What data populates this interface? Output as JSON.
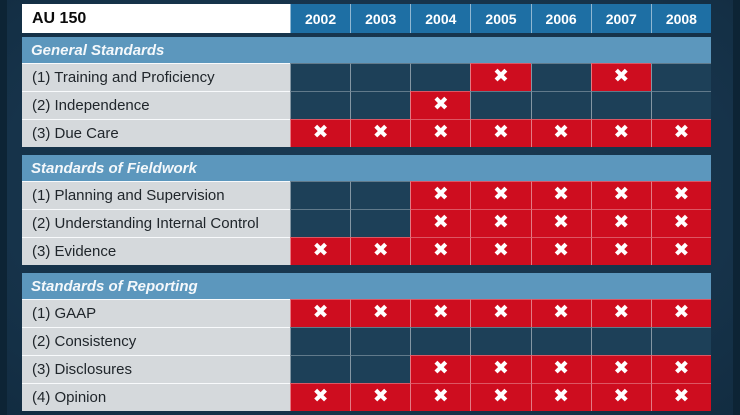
{
  "chart_data": {
    "type": "table",
    "title": "AU 150",
    "columns": [
      "2002",
      "2003",
      "2004",
      "2005",
      "2006",
      "2007",
      "2008"
    ],
    "mark_glyph": "✖",
    "sections": [
      {
        "title": "General Standards",
        "rows": [
          {
            "label": "(1) Training and Proficiency",
            "marks": [
              0,
              0,
              0,
              1,
              0,
              1,
              0
            ]
          },
          {
            "label": "(2) Independence",
            "marks": [
              0,
              0,
              1,
              0,
              0,
              0,
              0
            ]
          },
          {
            "label": "(3) Due Care",
            "marks": [
              1,
              1,
              1,
              1,
              1,
              1,
              1
            ]
          }
        ]
      },
      {
        "title": "Standards of Fieldwork",
        "rows": [
          {
            "label": "(1) Planning and Supervision",
            "marks": [
              0,
              0,
              1,
              1,
              1,
              1,
              1
            ]
          },
          {
            "label": "(2) Understanding Internal Control",
            "marks": [
              0,
              0,
              1,
              1,
              1,
              1,
              1
            ]
          },
          {
            "label": "(3) Evidence",
            "marks": [
              1,
              1,
              1,
              1,
              1,
              1,
              1
            ]
          }
        ]
      },
      {
        "title": "Standards of Reporting",
        "rows": [
          {
            "label": "(1) GAAP",
            "marks": [
              1,
              1,
              1,
              1,
              1,
              1,
              1
            ]
          },
          {
            "label": "(2) Consistency",
            "marks": [
              0,
              0,
              0,
              0,
              0,
              0,
              0
            ]
          },
          {
            "label": "(3) Disclosures",
            "marks": [
              0,
              0,
              1,
              1,
              1,
              1,
              1
            ]
          },
          {
            "label": "(4) Opinion",
            "marks": [
              1,
              1,
              1,
              1,
              1,
              1,
              1
            ]
          }
        ]
      }
    ],
    "colors": {
      "background": "#16334a",
      "background_light": "#1a3a53",
      "edge_shade": "#0d2435",
      "year_header": "#1e6fa4",
      "section_band": "#5c97bd",
      "label_cell": "#d5d9dc",
      "empty_cell": "#1d4058",
      "mark_cell": "#ce0d1f",
      "mark": "#ffffff",
      "label_text": "#20262b",
      "title_text": "#0b0b0b"
    }
  }
}
